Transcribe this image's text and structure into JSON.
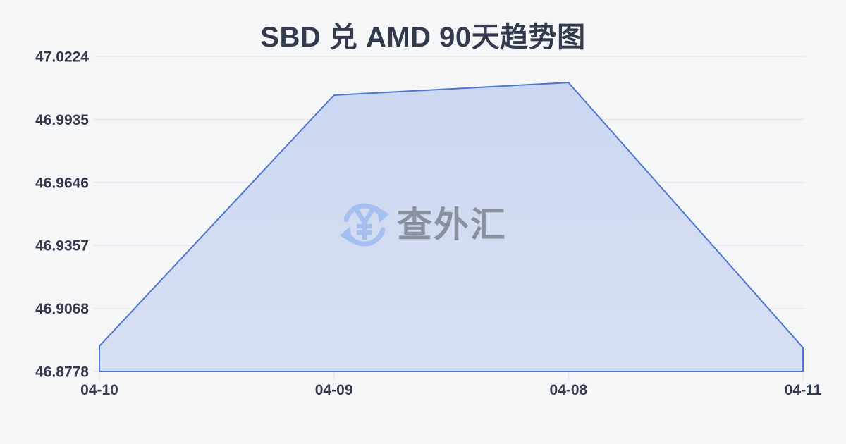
{
  "page": {
    "title": "SBD 兑 AMD 90天趋势图"
  },
  "watermark": {
    "icon": "currency-exchange-icon",
    "text": "查外汇"
  },
  "chart_data": {
    "type": "area",
    "title": "SBD 兑 AMD 90天趋势图",
    "x": [
      "04-10",
      "04-09",
      "04-08",
      "04-11"
    ],
    "values": [
      46.8894,
      47.0046,
      47.0104,
      46.8887
    ],
    "y_tick_labels": [
      "47.0224",
      "46.9935",
      "46.9646",
      "46.9357",
      "46.9068",
      "46.8778"
    ],
    "ylim": [
      46.8778,
      47.0224
    ],
    "xlabel": "",
    "ylabel": "",
    "grid": true,
    "legend_position": "none",
    "colors": {
      "background": "#f5f6f8",
      "text": "#323b4e",
      "grid": "#e5e8ec",
      "line": "#4d77cf",
      "fill_top": "#cbd7f1",
      "fill_bottom": "#d7dff3",
      "watermark_icon": "#a5c0ef",
      "watermark_text": "#8a909c"
    }
  }
}
